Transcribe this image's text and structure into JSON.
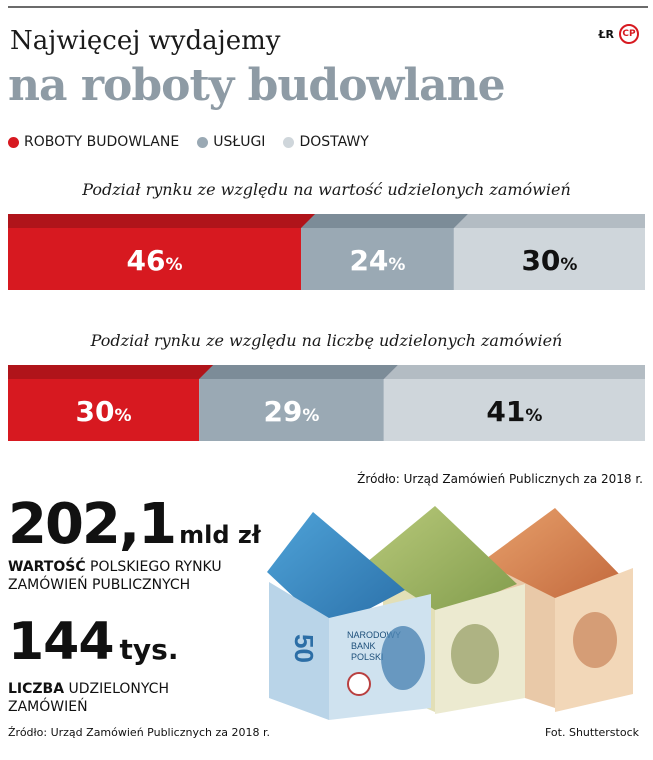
{
  "header": {
    "title_line1": "Najwięcej wydajemy",
    "title_line2": "na roboty budowlane",
    "brand_left": "ŁR",
    "brand_logo": "CP"
  },
  "colors": {
    "roboty": "#d71920",
    "roboty_dark": "#b0141a",
    "uslugi": "#9aa9b4",
    "uslugi_dark": "#7c8c98",
    "dostawy": "#cfd6db",
    "dostawy_dark": "#b3bcc3"
  },
  "chart_data": {
    "type": "bar",
    "orientation": "horizontal-stacked-100",
    "legend": [
      "ROBOTY BUDOWLANE",
      "USŁUGI",
      "DOSTAWY"
    ],
    "legend_position": "top-left",
    "series": [
      {
        "title": "Podział rynku ze względu na wartość udzielonych zamówień",
        "values": [
          46,
          24,
          30
        ],
        "labels": [
          "46",
          "24",
          "30"
        ]
      },
      {
        "title": "Podział rynku ze względu na liczbę udzielonych zamówień",
        "values": [
          30,
          29,
          41
        ],
        "labels": [
          "30",
          "29",
          "41"
        ]
      }
    ],
    "unit": "%"
  },
  "source_chart": "Źródło: Urząd Zamówień Publicznych za 2018 r.",
  "stat1": {
    "value": "202,1",
    "unit": "mld zł",
    "desc_bold": "WARTOŚĆ",
    "desc_rest": " POLSKIEGO RYNKU",
    "desc_line2": "ZAMÓWIEŃ PUBLICZNYCH"
  },
  "stat2": {
    "value": "144",
    "unit": "tys.",
    "desc_bold": "LICZBA",
    "desc_rest": " UDZIELONYCH",
    "desc_line2": "ZAMÓWIEŃ"
  },
  "footer": {
    "source": "Źródło: Urząd Zamówień Publicznych za 2018 r.",
    "photo_credit": "Fot. Shutterstock"
  },
  "photo": {
    "banknote_value": "50",
    "bank_text_1": "NARODOWY",
    "bank_text_2": "BANK",
    "bank_text_3": "POLSKI"
  }
}
